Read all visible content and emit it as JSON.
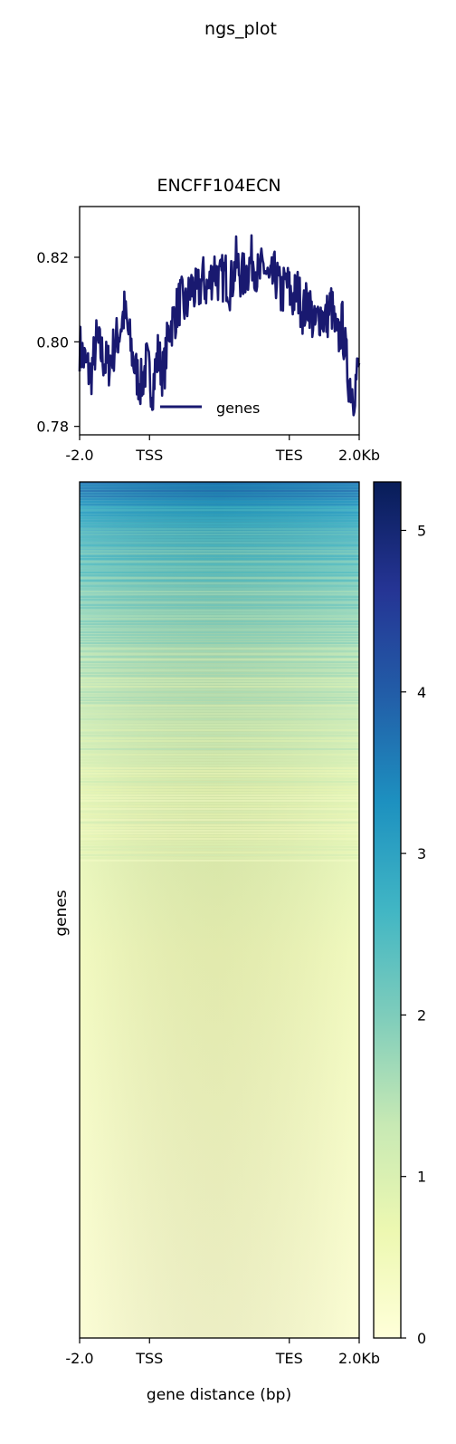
{
  "figure_title": "ngs_plot",
  "chart_data": [
    {
      "type": "line",
      "title": "ENCFF104ECN",
      "xlabel": "",
      "ylabel": "",
      "x_tick_labels": [
        "-2.0",
        "TSS",
        "TES",
        "2.0Kb"
      ],
      "x_tick_positions": [
        0,
        0.25,
        0.75,
        1.0
      ],
      "ylim": [
        0.778,
        0.832
      ],
      "y_ticks": [
        0.78,
        0.8,
        0.82
      ],
      "y_tick_labels": [
        "0.78",
        "0.80",
        "0.82"
      ],
      "legend_position": "lower-center",
      "grid": false,
      "series": [
        {
          "name": "genes",
          "color": "#191970",
          "x": [
            0.0,
            0.02,
            0.04,
            0.06,
            0.08,
            0.1,
            0.12,
            0.14,
            0.16,
            0.18,
            0.2,
            0.22,
            0.24,
            0.26,
            0.28,
            0.3,
            0.32,
            0.34,
            0.36,
            0.38,
            0.4,
            0.42,
            0.44,
            0.46,
            0.48,
            0.5,
            0.52,
            0.54,
            0.56,
            0.58,
            0.6,
            0.62,
            0.64,
            0.66,
            0.68,
            0.7,
            0.72,
            0.74,
            0.76,
            0.78,
            0.8,
            0.82,
            0.84,
            0.86,
            0.88,
            0.9,
            0.92,
            0.94,
            0.96,
            0.98,
            1.0
          ],
          "values": [
            0.799,
            0.795,
            0.792,
            0.8,
            0.797,
            0.794,
            0.798,
            0.802,
            0.807,
            0.8,
            0.793,
            0.79,
            0.795,
            0.789,
            0.797,
            0.792,
            0.803,
            0.806,
            0.81,
            0.808,
            0.813,
            0.811,
            0.815,
            0.812,
            0.818,
            0.814,
            0.816,
            0.813,
            0.819,
            0.815,
            0.817,
            0.82,
            0.815,
            0.818,
            0.813,
            0.816,
            0.811,
            0.814,
            0.81,
            0.812,
            0.807,
            0.81,
            0.803,
            0.807,
            0.805,
            0.809,
            0.8,
            0.804,
            0.792,
            0.788,
            0.795
          ]
        }
      ]
    },
    {
      "type": "heatmap",
      "title": "",
      "xlabel": "gene distance (bp)",
      "ylabel": "genes",
      "x_tick_labels": [
        "-2.0",
        "TSS",
        "TES",
        "2.0Kb"
      ],
      "x_tick_positions": [
        0,
        0.25,
        0.75,
        1.0
      ],
      "colormap": "YlGnBu",
      "colormap_stops": [
        "#ffffd9",
        "#edf8b1",
        "#c7e9b4",
        "#7fcdbb",
        "#41b6c4",
        "#1d91c0",
        "#225ea8",
        "#253494",
        "#081d58"
      ],
      "colorbar_range": [
        0,
        5.3
      ],
      "colorbar_ticks": [
        0,
        1,
        2,
        3,
        4,
        5
      ],
      "colorbar_tick_labels": [
        "0",
        "1",
        "2",
        "3",
        "4",
        "5"
      ],
      "row_profile_fraction": [
        0.0,
        0.03,
        0.1,
        0.2,
        0.35,
        0.55,
        1.0
      ],
      "row_profile_value": [
        3.6,
        3.0,
        2.2,
        1.5,
        0.9,
        0.55,
        0.15
      ]
    }
  ]
}
